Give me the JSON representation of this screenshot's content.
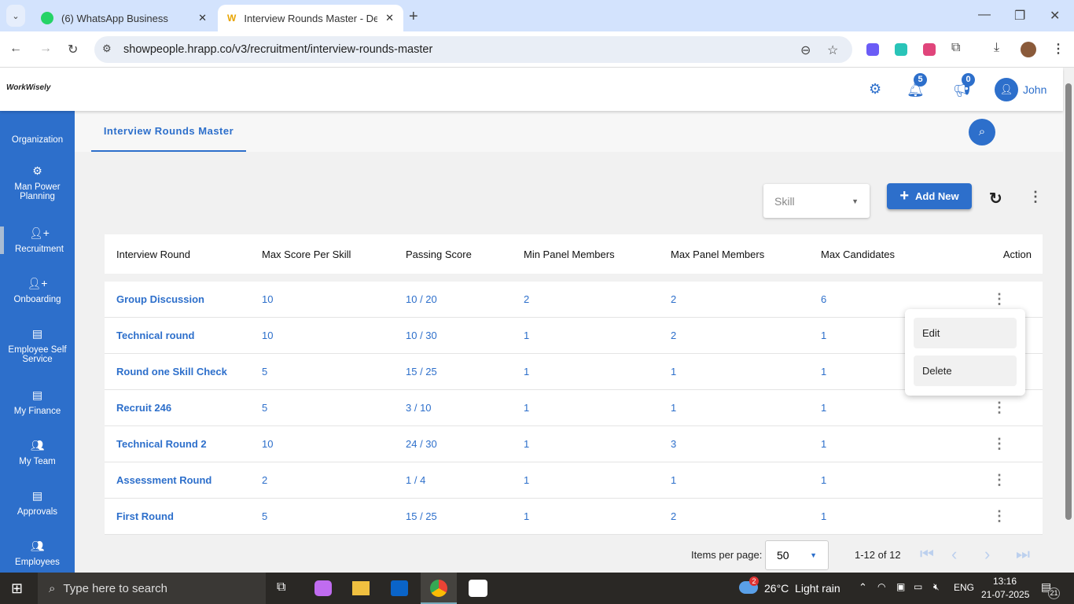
{
  "browser": {
    "tabs": [
      {
        "label": "(6) WhatsApp Business",
        "icon": "whatsapp-icon"
      },
      {
        "label": "Interview Rounds Master - Dem",
        "icon": "workwisely-icon"
      }
    ],
    "url": "showpeople.hrapp.co/v3/recruitment/interview-rounds-master"
  },
  "app": {
    "logo": "WorkWisely",
    "notifications": "5",
    "announcements": "0",
    "user": "John",
    "accent": "#2d6fcb"
  },
  "sidebar": {
    "items": [
      {
        "label": "Organization"
      },
      {
        "label": "Man Power Planning"
      },
      {
        "label": "Recruitment",
        "active": true
      },
      {
        "label": "Onboarding"
      },
      {
        "label": "Employee Self Service"
      },
      {
        "label": "My Finance"
      },
      {
        "label": "My Team"
      },
      {
        "label": "Approvals"
      },
      {
        "label": "Employees"
      }
    ]
  },
  "page": {
    "tab": "Interview Rounds Master",
    "skill_placeholder": "Skill",
    "add_new": "Add New"
  },
  "table": {
    "columns": [
      "Interview Round",
      "Max Score Per Skill",
      "Passing Score",
      "Min Panel Members",
      "Max Panel Members",
      "Max Candidates",
      "Action"
    ],
    "rows": [
      [
        "Group Discussion",
        "10",
        "10 / 20",
        "2",
        "2",
        "6"
      ],
      [
        "Technical round",
        "10",
        "10 / 30",
        "1",
        "2",
        "1"
      ],
      [
        "Round one Skill Check",
        "5",
        "15 / 25",
        "1",
        "1",
        "1"
      ],
      [
        "Recruit 246",
        "5",
        "3 / 10",
        "1",
        "1",
        "1"
      ],
      [
        "Technical Round 2",
        "10",
        "24 / 30",
        "1",
        "3",
        "1"
      ],
      [
        "Assessment Round",
        "2",
        "1 / 4",
        "1",
        "1",
        "1"
      ],
      [
        "First Round",
        "5",
        "15 / 25",
        "1",
        "2",
        "1"
      ]
    ]
  },
  "action_menu": {
    "edit": "Edit",
    "delete": "Delete"
  },
  "pagination": {
    "label": "Items per page:",
    "per_page": "50",
    "range": "1-12 of 12"
  },
  "taskbar": {
    "search": "Type here to search",
    "weather": "26°C  Light rain",
    "weather_badge": "2",
    "lang": "ENG",
    "time": "13:16",
    "date": "21-07-2025",
    "notif_count": "21"
  }
}
